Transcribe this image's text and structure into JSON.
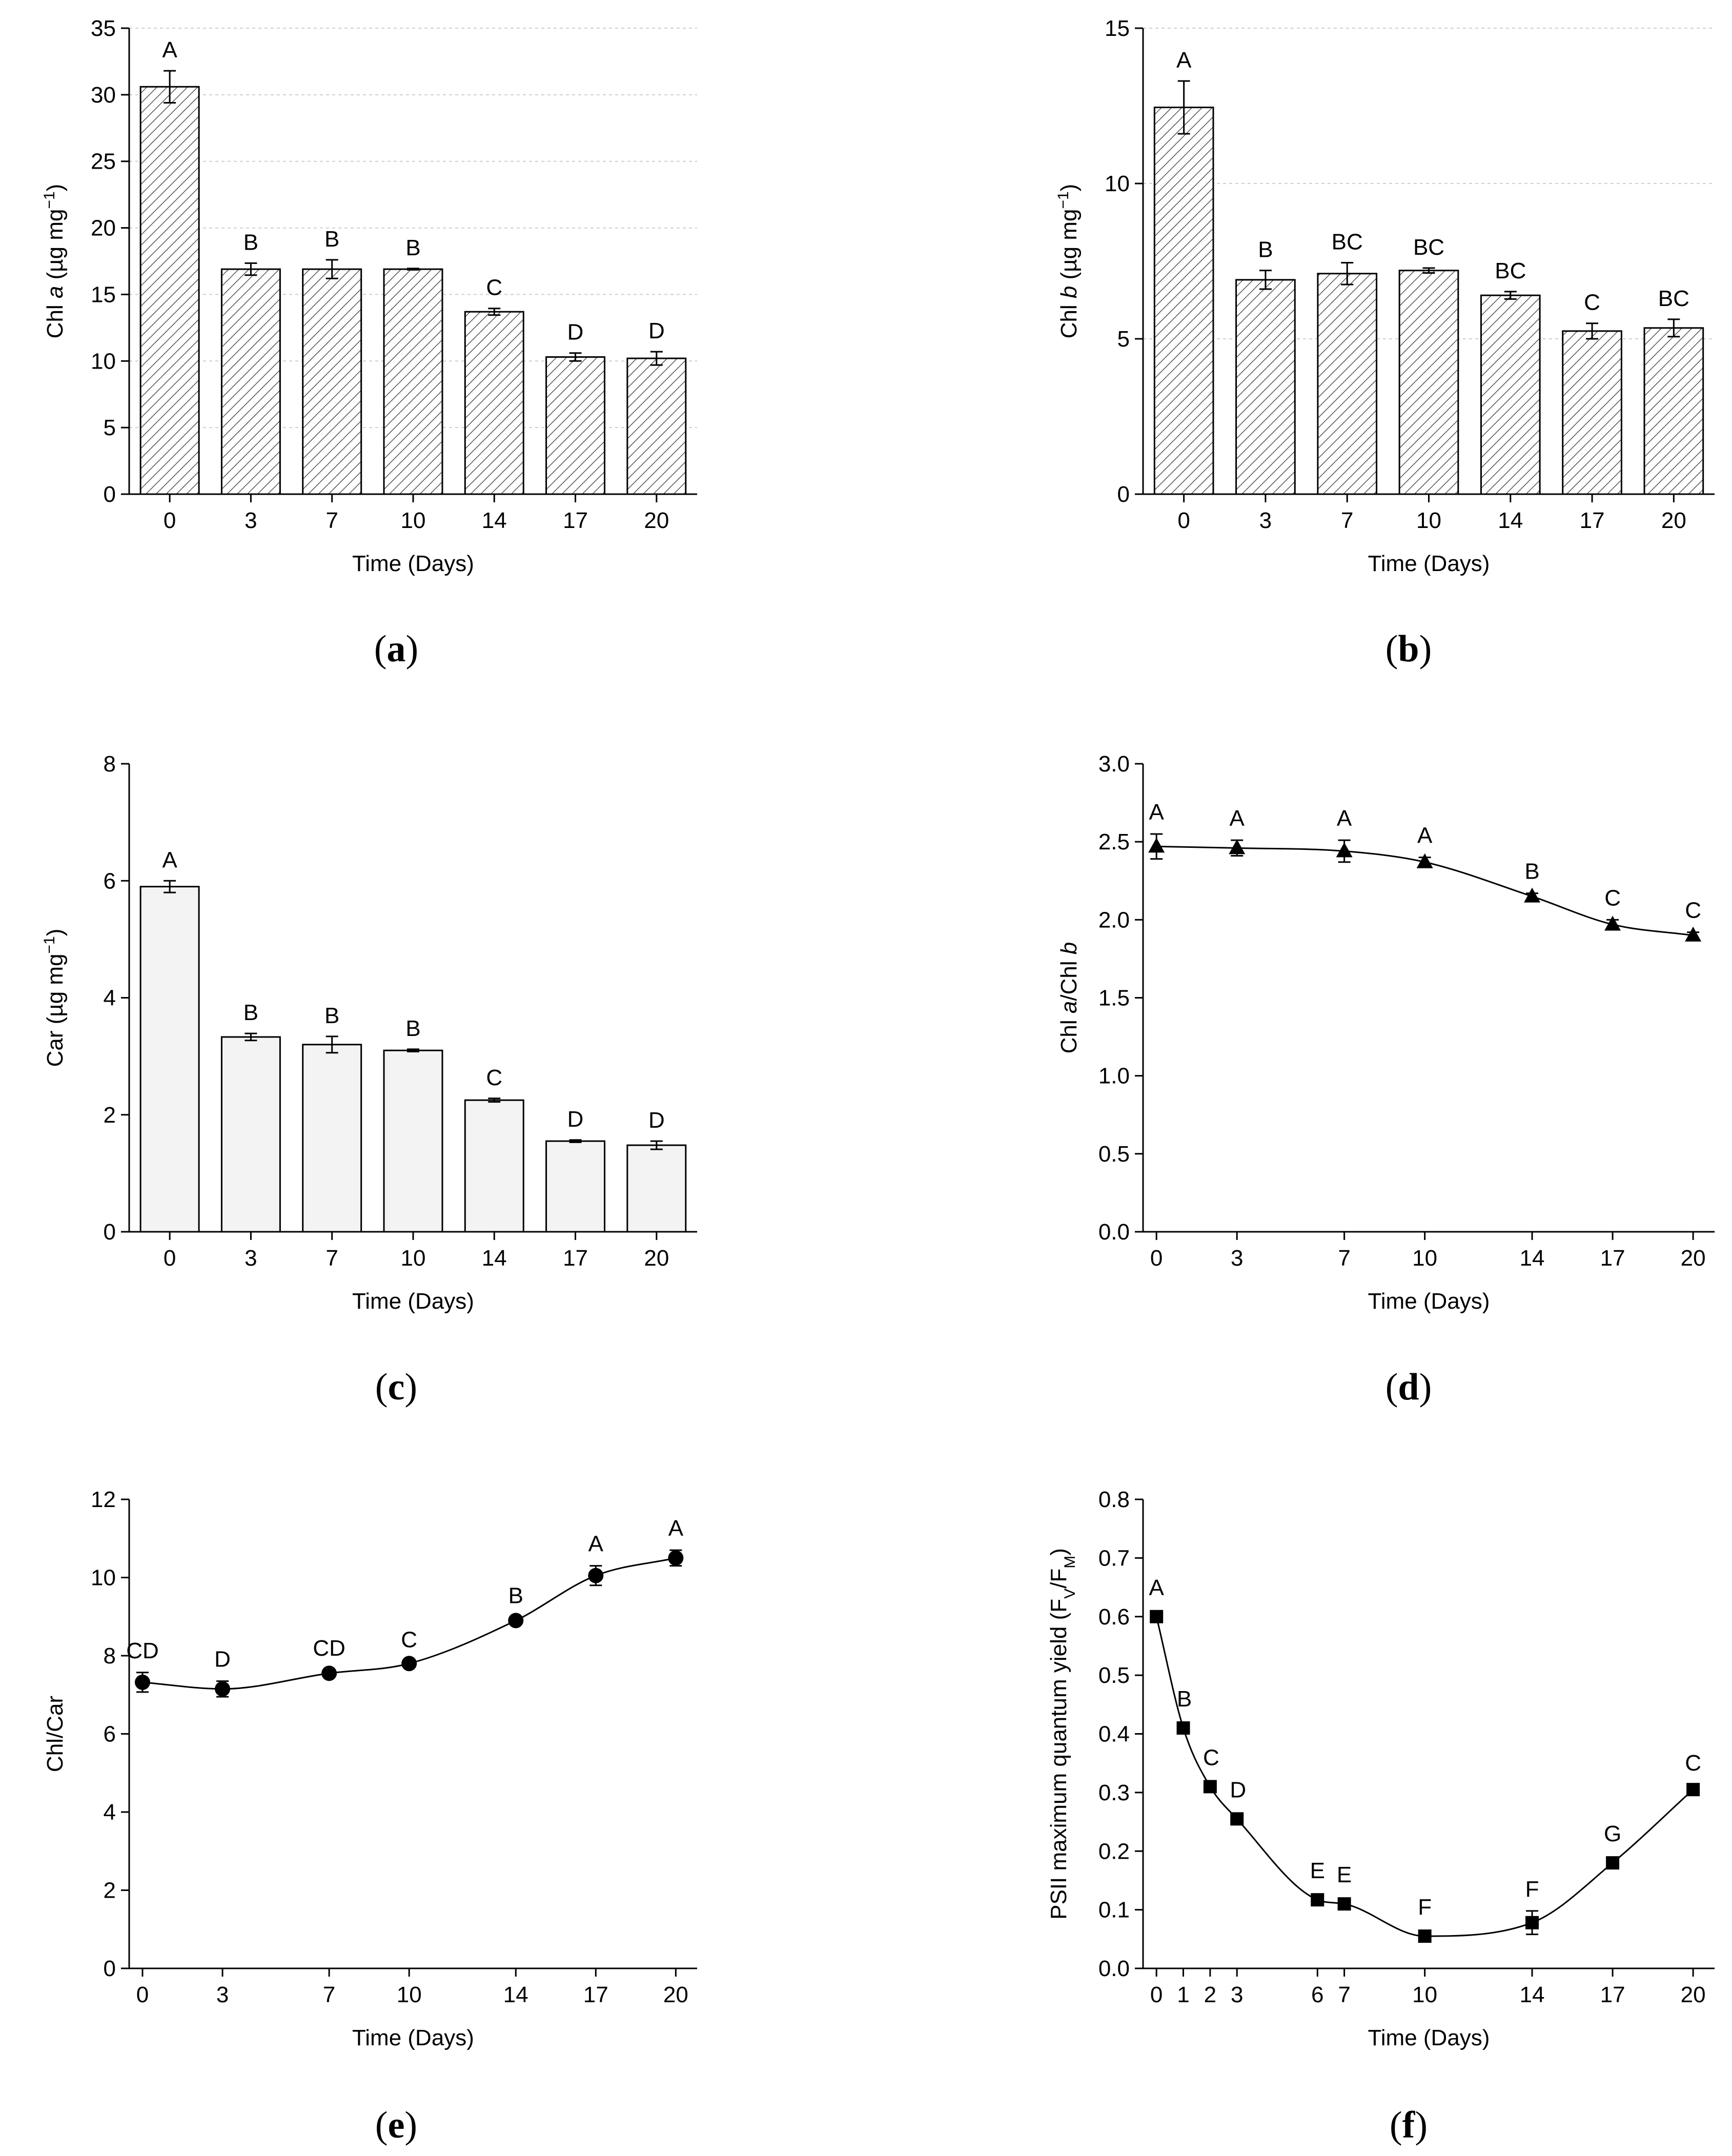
{
  "chart_data": [
    {
      "id": "a",
      "type": "bar",
      "fill": "hatch",
      "caption": "a",
      "xlabel": "Time (Days)",
      "ylabel_parts": [
        "Chl ",
        "a",
        " (µg mg",
        "−1",
        ")"
      ],
      "categories": [
        "0",
        "3",
        "7",
        "10",
        "14",
        "17",
        "20"
      ],
      "values": [
        30.6,
        16.9,
        16.9,
        16.9,
        13.7,
        10.3,
        10.2
      ],
      "errors": [
        1.2,
        0.45,
        0.7,
        0.05,
        0.25,
        0.3,
        0.5
      ],
      "letters": [
        "A",
        "B",
        "B",
        "B",
        "C",
        "D",
        "D"
      ],
      "ylim": [
        0,
        35
      ],
      "yticks": [
        0,
        5,
        10,
        15,
        20,
        25,
        30,
        35
      ],
      "grid": true
    },
    {
      "id": "b",
      "type": "bar",
      "fill": "hatch",
      "caption": "b",
      "xlabel": "Time (Days)",
      "ylabel_parts": [
        "Chl ",
        "b",
        " (µg mg",
        "−1",
        ")"
      ],
      "categories": [
        "0",
        "3",
        "7",
        "10",
        "14",
        "17",
        "20"
      ],
      "values": [
        12.45,
        6.9,
        7.1,
        7.2,
        6.4,
        5.25,
        5.35
      ],
      "errors": [
        0.85,
        0.3,
        0.35,
        0.08,
        0.12,
        0.25,
        0.28
      ],
      "letters": [
        "A",
        "B",
        "BC",
        "BC",
        "BC",
        "C",
        "BC"
      ],
      "ylim": [
        0,
        15
      ],
      "yticks": [
        0,
        5,
        10,
        15
      ],
      "grid": true
    },
    {
      "id": "c",
      "type": "bar",
      "fill": "light",
      "caption": "c",
      "xlabel": "Time (Days)",
      "ylabel_parts": [
        "Car (µg mg",
        "−1",
        ")"
      ],
      "categories": [
        "0",
        "3",
        "7",
        "10",
        "14",
        "17",
        "20"
      ],
      "values": [
        5.9,
        3.33,
        3.2,
        3.1,
        2.25,
        1.55,
        1.48
      ],
      "errors": [
        0.1,
        0.06,
        0.14,
        0.02,
        0.03,
        0.02,
        0.07
      ],
      "letters": [
        "A",
        "B",
        "B",
        "B",
        "C",
        "D",
        "D"
      ],
      "ylim": [
        0,
        8
      ],
      "yticks": [
        0,
        2,
        4,
        6,
        8
      ],
      "grid": false
    },
    {
      "id": "d",
      "type": "line",
      "marker": "triangle",
      "caption": "d",
      "xlabel": "Time (Days)",
      "ylabel_parts": [
        "Chl ",
        "a",
        "/Chl ",
        "b"
      ],
      "x": [
        0,
        3,
        7,
        10,
        14,
        17,
        20
      ],
      "xticks": [
        0,
        3,
        7,
        10,
        14,
        17,
        20
      ],
      "values": [
        2.47,
        2.46,
        2.44,
        2.37,
        2.15,
        1.97,
        1.9
      ],
      "errors": [
        0.08,
        0.05,
        0.07,
        0.03,
        0.02,
        0.03,
        0.02
      ],
      "letters": [
        "A",
        "A",
        "A",
        "A",
        "B",
        "C",
        "C"
      ],
      "xlim": [
        -0.5,
        20.8
      ],
      "ylim": [
        0,
        3.0
      ],
      "yticks": [
        0.0,
        0.5,
        1.0,
        1.5,
        2.0,
        2.5,
        3.0
      ],
      "ytick_labels": [
        "0.0",
        "0.5",
        "1.0",
        "1.5",
        "2.0",
        "2.5",
        "3.0"
      ]
    },
    {
      "id": "e",
      "type": "line",
      "marker": "circle",
      "caption": "e",
      "xlabel": "Time (Days)",
      "ylabel_parts": [
        "Chl/Car"
      ],
      "x": [
        0,
        3,
        7,
        10,
        14,
        17,
        20
      ],
      "xticks": [
        0,
        3,
        7,
        10,
        14,
        17,
        20
      ],
      "values": [
        7.32,
        7.15,
        7.55,
        7.8,
        8.9,
        10.05,
        10.5
      ],
      "errors": [
        0.25,
        0.2,
        0.08,
        0.05,
        0.08,
        0.25,
        0.2
      ],
      "letters": [
        "CD",
        "D",
        "CD",
        "C",
        "B",
        "A",
        "A"
      ],
      "xlim": [
        -0.5,
        20.8
      ],
      "ylim": [
        0,
        12
      ],
      "yticks": [
        0,
        2,
        4,
        6,
        8,
        10,
        12
      ],
      "ytick_labels": [
        "0",
        "2",
        "4",
        "6",
        "8",
        "10",
        "12"
      ]
    },
    {
      "id": "f",
      "type": "line",
      "marker": "square",
      "caption": "f",
      "xlabel": "Time (Days)",
      "ylabel_parts": [
        "PSII maximum quantum yield (F",
        "V",
        "/F",
        "M",
        ")"
      ],
      "x": [
        0,
        1,
        2,
        3,
        6,
        7,
        10,
        14,
        17,
        20
      ],
      "xticks": [
        0,
        1,
        2,
        3,
        6,
        7,
        10,
        14,
        17,
        20
      ],
      "values": [
        0.6,
        0.41,
        0.31,
        0.255,
        0.117,
        0.11,
        0.055,
        0.078,
        0.18,
        0.305
      ],
      "errors": [
        0.0,
        0.0,
        0.0,
        0.0,
        0.0,
        0.0,
        0.0,
        0.02,
        0.0,
        0.008
      ],
      "letters": [
        "A",
        "B",
        "C",
        "D",
        "E",
        "E",
        "F",
        "F",
        "G",
        "C"
      ],
      "xlim": [
        -0.5,
        20.8
      ],
      "ylim": [
        0,
        0.8
      ],
      "yticks": [
        0.0,
        0.1,
        0.2,
        0.3,
        0.4,
        0.5,
        0.6,
        0.7,
        0.8
      ],
      "ytick_labels": [
        "0.0",
        "0.1",
        "0.2",
        "0.3",
        "0.4",
        "0.5",
        "0.6",
        "0.7",
        "0.8"
      ]
    }
  ]
}
